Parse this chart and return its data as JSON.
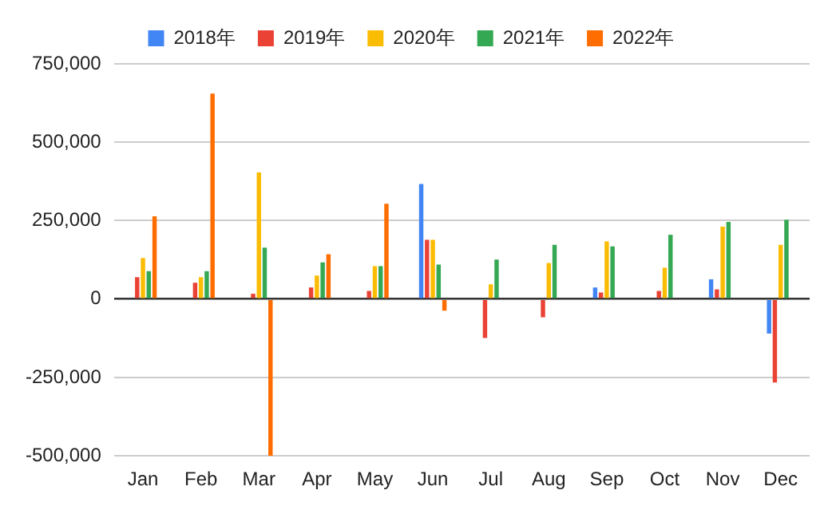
{
  "chart_data": {
    "type": "bar",
    "categories": [
      "Jan",
      "Feb",
      "Mar",
      "Apr",
      "May",
      "Jun",
      "Jul",
      "Aug",
      "Sep",
      "Oct",
      "Nov",
      "Dec"
    ],
    "series": [
      {
        "name": "2018年",
        "color": "#4285f4",
        "values": [
          null,
          null,
          null,
          null,
          null,
          367000,
          null,
          null,
          37000,
          null,
          63000,
          -110000
        ]
      },
      {
        "name": "2019年",
        "color": "#ea4335",
        "values": [
          70000,
          52000,
          17000,
          37000,
          26000,
          189000,
          -124000,
          -58000,
          21000,
          26000,
          31000,
          -266000
        ]
      },
      {
        "name": "2020年",
        "color": "#fbbc04",
        "values": [
          131000,
          70000,
          404000,
          75000,
          105000,
          189000,
          47000,
          115000,
          184000,
          100000,
          231000,
          173000
        ]
      },
      {
        "name": "2021年",
        "color": "#34a853",
        "values": [
          89000,
          89000,
          164000,
          117000,
          105000,
          110000,
          126000,
          173000,
          168000,
          205000,
          246000,
          253000
        ]
      },
      {
        "name": "2022年",
        "color": "#ff6d01",
        "values": [
          264000,
          655000,
          -500000,
          143000,
          304000,
          -37000,
          null,
          null,
          null,
          null,
          null,
          null
        ]
      }
    ],
    "ylim": [
      -500000,
      750000
    ],
    "yticks": [
      {
        "value": -500000,
        "label": "-500,000"
      },
      {
        "value": -250000,
        "label": "-250,000"
      },
      0,
      {
        "value": 250000,
        "label": "250,000"
      },
      {
        "value": 500000,
        "label": "500,000"
      },
      {
        "value": 750000,
        "label": "750,000"
      }
    ],
    "grid": "y",
    "legend": "top"
  }
}
